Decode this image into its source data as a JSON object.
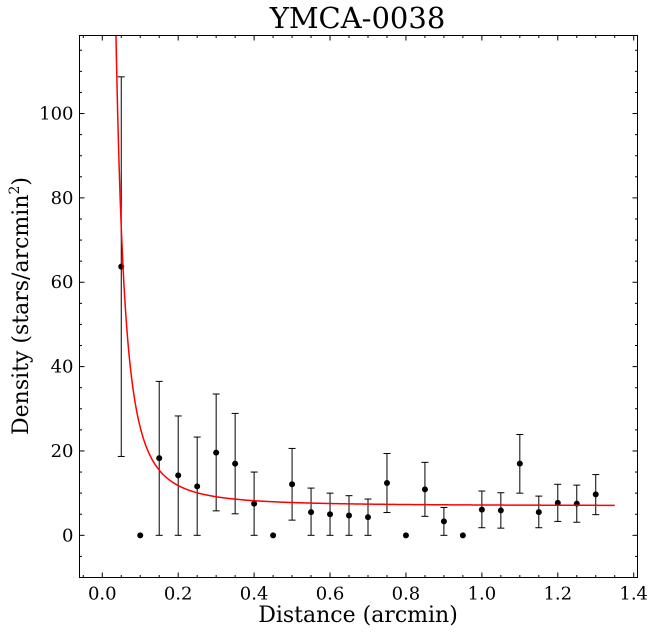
{
  "chart_data": {
    "type": "scatter",
    "title": "YMCA-0038",
    "xlabel": "Distance (arcmin)",
    "ylabel_main": "Density (stars/arcmin",
    "ylabel_sup": "2",
    "ylabel_close": ")",
    "xlim": [
      -0.06,
      1.41
    ],
    "ylim": [
      -10,
      118.5
    ],
    "xticks": [
      0.0,
      0.2,
      0.4,
      0.6,
      0.8,
      1.0,
      1.2,
      1.4
    ],
    "xtick_labels": [
      "0.0",
      "0.2",
      "0.4",
      "0.6",
      "0.8",
      "1.0",
      "1.2",
      "1.4"
    ],
    "yticks": [
      0,
      20,
      40,
      60,
      80,
      100
    ],
    "ytick_labels": [
      "0",
      "20",
      "40",
      "60",
      "80",
      "100"
    ],
    "grid": false,
    "legend": "none",
    "series": [
      {
        "type": "errorbar",
        "color": "#000000",
        "x": [
          0.05,
          0.1,
          0.15,
          0.2,
          0.25,
          0.3,
          0.35,
          0.4,
          0.45,
          0.5,
          0.55,
          0.6,
          0.65,
          0.7,
          0.75,
          0.8,
          0.85,
          0.9,
          0.95,
          1.0,
          1.05,
          1.1,
          1.15,
          1.2,
          1.25,
          1.3
        ],
        "y": [
          63.7,
          0.0,
          18.3,
          14.2,
          11.6,
          19.6,
          17.0,
          7.5,
          0.0,
          12.1,
          5.5,
          5.0,
          4.7,
          4.3,
          12.4,
          0.0,
          10.9,
          3.3,
          0.0,
          6.1,
          5.9,
          17.0,
          5.5,
          7.7,
          7.5,
          9.7
        ],
        "ylow": [
          18.7,
          0.0,
          0.0,
          0.0,
          0.0,
          5.8,
          5.1,
          0.0,
          0.0,
          3.6,
          0.0,
          0.0,
          0.0,
          0.0,
          5.4,
          0.0,
          4.5,
          0.0,
          0.0,
          1.8,
          1.7,
          10.0,
          1.8,
          3.3,
          3.1,
          4.9
        ],
        "yhigh": [
          108.7,
          0.0,
          36.5,
          28.3,
          23.3,
          33.5,
          28.9,
          15.0,
          0.0,
          20.6,
          11.2,
          10.0,
          9.4,
          8.6,
          19.4,
          0.0,
          17.3,
          6.6,
          0.0,
          10.5,
          10.1,
          23.9,
          9.3,
          12.1,
          11.9,
          14.4
        ]
      },
      {
        "type": "line",
        "color": "#ff0000",
        "model": {
          "background": 7.0,
          "core_radius": 0.021,
          "amplitude": 440.0
        },
        "x_range": [
          0.0,
          1.35
        ]
      }
    ]
  }
}
